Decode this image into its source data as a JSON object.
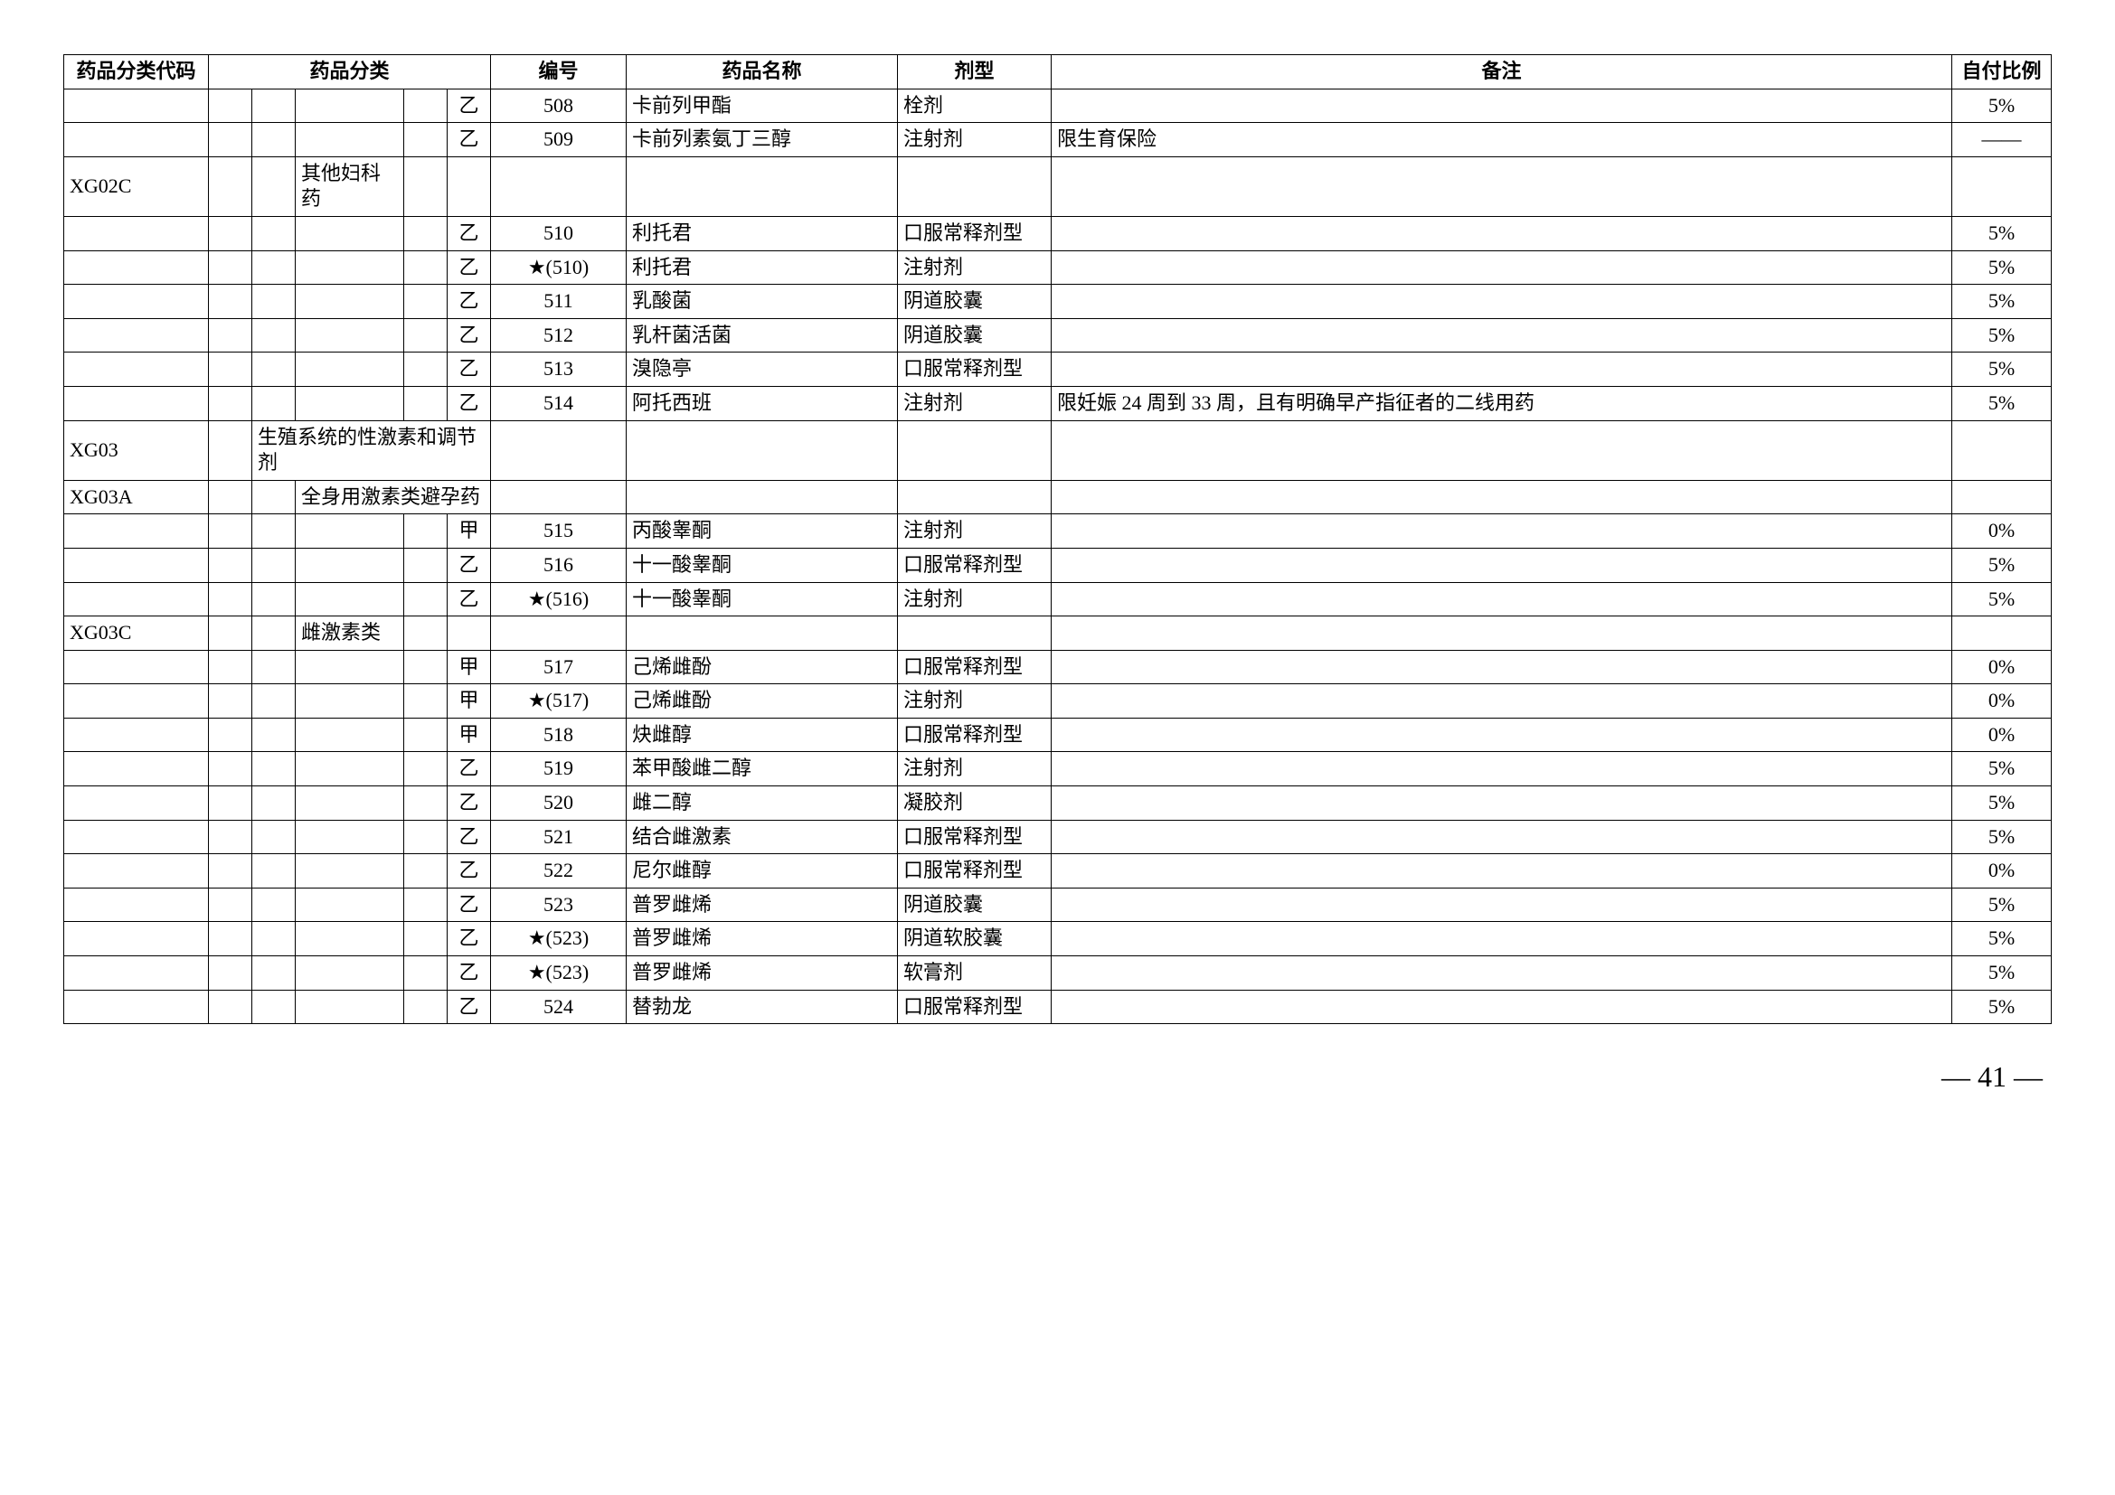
{
  "headers": {
    "code": "药品分类代码",
    "category": "药品分类",
    "number": "编号",
    "name": "药品名称",
    "form": "剂型",
    "note": "备注",
    "ratio": "自付比例"
  },
  "rows": [
    {
      "code": "",
      "c1": "",
      "c2": "",
      "c3": "",
      "c4": "",
      "c5": "乙",
      "num": "508",
      "name": "卡前列甲酯",
      "form": "栓剂",
      "note": "",
      "ratio": "5%"
    },
    {
      "code": "",
      "c1": "",
      "c2": "",
      "c3": "",
      "c4": "",
      "c5": "乙",
      "num": "509",
      "name": "卡前列素氨丁三醇",
      "form": "注射剂",
      "note": "限生育保险",
      "ratio": "——"
    },
    {
      "code": "XG02C",
      "c1": "",
      "c2": "",
      "c3": "其他妇科药",
      "c4": "",
      "c5": "",
      "num": "",
      "name": "",
      "form": "",
      "note": "",
      "ratio": ""
    },
    {
      "code": "",
      "c1": "",
      "c2": "",
      "c3": "",
      "c4": "",
      "c5": "乙",
      "num": "510",
      "name": "利托君",
      "form": "口服常释剂型",
      "note": "",
      "ratio": "5%"
    },
    {
      "code": "",
      "c1": "",
      "c2": "",
      "c3": "",
      "c4": "",
      "c5": "乙",
      "num": "★(510)",
      "name": "利托君",
      "form": "注射剂",
      "note": "",
      "ratio": "5%"
    },
    {
      "code": "",
      "c1": "",
      "c2": "",
      "c3": "",
      "c4": "",
      "c5": "乙",
      "num": "511",
      "name": "乳酸菌",
      "form": "阴道胶囊",
      "note": "",
      "ratio": "5%"
    },
    {
      "code": "",
      "c1": "",
      "c2": "",
      "c3": "",
      "c4": "",
      "c5": "乙",
      "num": "512",
      "name": "乳杆菌活菌",
      "form": "阴道胶囊",
      "note": "",
      "ratio": "5%"
    },
    {
      "code": "",
      "c1": "",
      "c2": "",
      "c3": "",
      "c4": "",
      "c5": "乙",
      "num": "513",
      "name": "溴隐亭",
      "form": "口服常释剂型",
      "note": "",
      "ratio": "5%"
    },
    {
      "code": "",
      "c1": "",
      "c2": "",
      "c3": "",
      "c4": "",
      "c5": "乙",
      "num": "514",
      "name": "阿托西班",
      "form": "注射剂",
      "note": "限妊娠 24 周到 33 周，且有明确早产指征者的二线用药",
      "ratio": "5%",
      "multiline": true
    },
    {
      "code": "XG03",
      "c1": "",
      "c2": "生殖系统的性激素和调节剂",
      "c3": "",
      "c4": "",
      "c5": "",
      "num": "",
      "name": "",
      "form": "",
      "note": "",
      "ratio": "",
      "span_c2": 4
    },
    {
      "code": "XG03A",
      "c1": "",
      "c2": "",
      "c3": "全身用激素类避孕药",
      "c4": "",
      "c5": "",
      "num": "",
      "name": "",
      "form": "",
      "note": "",
      "ratio": "",
      "span_c3": 3
    },
    {
      "code": "",
      "c1": "",
      "c2": "",
      "c3": "",
      "c4": "",
      "c5": "甲",
      "num": "515",
      "name": "丙酸睾酮",
      "form": "注射剂",
      "note": "",
      "ratio": "0%"
    },
    {
      "code": "",
      "c1": "",
      "c2": "",
      "c3": "",
      "c4": "",
      "c5": "乙",
      "num": "516",
      "name": "十一酸睾酮",
      "form": "口服常释剂型",
      "note": "",
      "ratio": "5%"
    },
    {
      "code": "",
      "c1": "",
      "c2": "",
      "c3": "",
      "c4": "",
      "c5": "乙",
      "num": "★(516)",
      "name": "十一酸睾酮",
      "form": "注射剂",
      "note": "",
      "ratio": "5%"
    },
    {
      "code": "XG03C",
      "c1": "",
      "c2": "",
      "c3": "雌激素类",
      "c4": "",
      "c5": "",
      "num": "",
      "name": "",
      "form": "",
      "note": "",
      "ratio": ""
    },
    {
      "code": "",
      "c1": "",
      "c2": "",
      "c3": "",
      "c4": "",
      "c5": "甲",
      "num": "517",
      "name": "己烯雌酚",
      "form": "口服常释剂型",
      "note": "",
      "ratio": "0%"
    },
    {
      "code": "",
      "c1": "",
      "c2": "",
      "c3": "",
      "c4": "",
      "c5": "甲",
      "num": "★(517)",
      "name": "己烯雌酚",
      "form": "注射剂",
      "note": "",
      "ratio": "0%"
    },
    {
      "code": "",
      "c1": "",
      "c2": "",
      "c3": "",
      "c4": "",
      "c5": "甲",
      "num": "518",
      "name": "炔雌醇",
      "form": "口服常释剂型",
      "note": "",
      "ratio": "0%"
    },
    {
      "code": "",
      "c1": "",
      "c2": "",
      "c3": "",
      "c4": "",
      "c5": "乙",
      "num": "519",
      "name": "苯甲酸雌二醇",
      "form": "注射剂",
      "note": "",
      "ratio": "5%"
    },
    {
      "code": "",
      "c1": "",
      "c2": "",
      "c3": "",
      "c4": "",
      "c5": "乙",
      "num": "520",
      "name": "雌二醇",
      "form": "凝胶剂",
      "note": "",
      "ratio": "5%"
    },
    {
      "code": "",
      "c1": "",
      "c2": "",
      "c3": "",
      "c4": "",
      "c5": "乙",
      "num": "521",
      "name": "结合雌激素",
      "form": "口服常释剂型",
      "note": "",
      "ratio": "5%"
    },
    {
      "code": "",
      "c1": "",
      "c2": "",
      "c3": "",
      "c4": "",
      "c5": "乙",
      "num": "522",
      "name": "尼尔雌醇",
      "form": "口服常释剂型",
      "note": "",
      "ratio": "0%"
    },
    {
      "code": "",
      "c1": "",
      "c2": "",
      "c3": "",
      "c4": "",
      "c5": "乙",
      "num": "523",
      "name": "普罗雌烯",
      "form": "阴道胶囊",
      "note": "",
      "ratio": "5%"
    },
    {
      "code": "",
      "c1": "",
      "c2": "",
      "c3": "",
      "c4": "",
      "c5": "乙",
      "num": "★(523)",
      "name": "普罗雌烯",
      "form": "阴道软胶囊",
      "note": "",
      "ratio": "5%"
    },
    {
      "code": "",
      "c1": "",
      "c2": "",
      "c3": "",
      "c4": "",
      "c5": "乙",
      "num": "★(523)",
      "name": "普罗雌烯",
      "form": "软膏剂",
      "note": "",
      "ratio": "5%"
    },
    {
      "code": "",
      "c1": "",
      "c2": "",
      "c3": "",
      "c4": "",
      "c5": "乙",
      "num": "524",
      "name": "替勃龙",
      "form": "口服常释剂型",
      "note": "",
      "ratio": "5%"
    }
  ],
  "page_number": "— 41 —"
}
